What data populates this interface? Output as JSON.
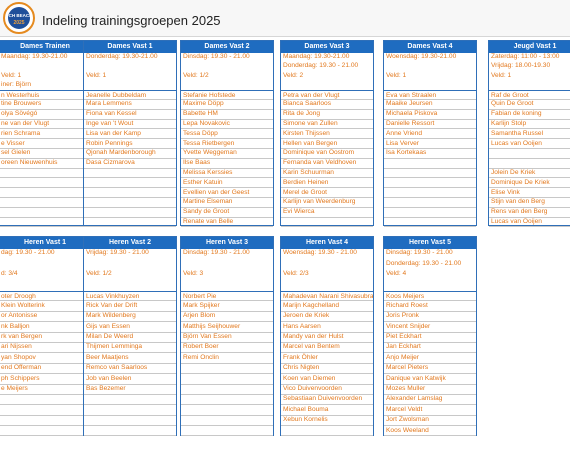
{
  "logo": {
    "line1": "VCH BEACH",
    "line2": "2025"
  },
  "title": "Indeling trainingsgroepen 2025",
  "sections": [
    {
      "groups": [
        {
          "name": "Dames Trainen",
          "schedule": [
            "Maandag: 19.30-21.00",
            null,
            "Veld: 1",
            "iner: Björn"
          ],
          "members": [
            "n Westerhuis",
            "tine Brouwers",
            "olya Sövégó",
            "ne van der Vlugt",
            "rien Schrama",
            "e Visser",
            "sel Gielen",
            "oreen Nieuwenhuis"
          ]
        },
        {
          "name": "Dames Vast 1",
          "schedule": [
            "Donderdag: 19.30-21.00",
            null,
            "Veld: 1"
          ],
          "members": [
            "Jeanelle Dubbeldam",
            "Mara Lemmens",
            "Fiona van Kessel",
            "Inge van 't Wout",
            "Lisa van der Kamp",
            "Robin Pennings",
            "Qjonah Mardenborough",
            "Dasa Cizmarova"
          ]
        },
        {
          "name": "Dames Vast 2",
          "schedule": [
            "Dinsdag: 19.30 - 21.00",
            null,
            "Veld: 1/2"
          ],
          "members": [
            "Stefanie Hofstede",
            "Maxime Döpp",
            "Babette HM",
            "Lepa Novakovic",
            "Tessa Döpp",
            "Tessa Rietbergen",
            "Yvette Weggeman",
            "Ilse Baas",
            "Melissa Kerssies",
            "Esther Katuin",
            "Evellien van der Geest",
            "Martine Elseman",
            "Sandy de Groot",
            "Renate van Belle"
          ]
        },
        {
          "name": "Dames Vast 3",
          "schedule": [
            "Maandag: 19.30-21.00",
            "Donderdag: 19.30 - 21.00",
            "Veld: 2"
          ],
          "members": [
            "Petra van der Vlugt",
            "Bianca Saarloos",
            "Rita de Jong",
            "Simone van Zullen",
            "Kirsten Thijssen",
            "Hellen van Bergen",
            "Dominique van Oostrom",
            "Fernanda van Veldhoven",
            "Karin Schuurman",
            "Berdien Heinen",
            "Merel de Groot",
            "Karlijn van Weerdenburg",
            "Evi Wierca"
          ]
        },
        {
          "name": "Dames Vast 4",
          "schedule": [
            "Woensdag: 19.30-21.00",
            null,
            "Veld: 1"
          ],
          "members": [
            "Eva van Straalen",
            "Maaike Jeursen",
            "Michaela Piskova",
            "Danielle Ressort",
            "Anne Vriend",
            "Lisa Verver",
            "Isa Kortekaas"
          ]
        },
        {
          "name": "Jeugd Vast 1",
          "schedule": [
            "Zaterdag: 11:00 - 13:00",
            "Vrijdag: 18.00-19.30",
            "Veld: 1"
          ],
          "members": [
            "Raf de Groot",
            "Quin De Groot",
            "Fabian de koning",
            "Karlijn Stolp",
            "Samantha Russel",
            "Lucas van Ooijen",
            null,
            null,
            "Jolein De Kriek",
            "Dominique De Kriek",
            "Elise Vink",
            "Stijn van den Berg",
            "Rens van den Berg",
            "Lucas van Ooijen"
          ]
        }
      ]
    },
    {
      "groups": [
        {
          "name": "Heren Vast 1",
          "schedule": [
            "dag: 19.30 - 21.00",
            null,
            "d: 3/4"
          ],
          "members": [
            "oter Droogh",
            "Klein Wolterink",
            "or Antonisse",
            "nk Balljon",
            "rk van Bergen",
            "ari Nijssen",
            "yan Shopov",
            "end Offerman",
            "ph Schippers",
            "e Meijers"
          ]
        },
        {
          "name": "Heren Vast 2",
          "schedule": [
            "Vrijdag: 19.30 - 21.00",
            null,
            "Veld: 1/2"
          ],
          "members": [
            "Lucas Vinkhuyzen",
            "Rick Van der Drift",
            "Mark Wildenberg",
            "Gijs van Essen",
            "Milan De Weerd",
            "Thijmen Lemminga",
            "Beer Maatjens",
            "Remco van Saarloos",
            "Job van Beelen",
            "Bas Bezemer"
          ]
        },
        {
          "name": "Heren Vast 3",
          "schedule": [
            "Dinsdag: 19.30 - 21.00",
            null,
            "Veld: 3"
          ],
          "members": [
            "Norbert Pie",
            "Mark Spijker",
            "Arjen Blom",
            "Matthijs Seijhouwer",
            "Björn Van Essen",
            "Robert Boer",
            "Remi Onclin"
          ]
        },
        {
          "name": "Heren Vast 4",
          "schedule": [
            "Woensdag: 19.30 - 21.00",
            null,
            "Veld: 2/3"
          ],
          "members": [
            "Mahadevan Narani Shivasubramaniam",
            "Marijn Kagchelland",
            "Jeroen de Kriek",
            "Hans Aarsen",
            "Mandy van der Hulst",
            "Marcel van Bentem",
            "Frank Öhler",
            "Chris Nigten",
            "Koen van Diemen",
            "Vico Duivenvoorden",
            "Sebastiaan Duivenvoorden",
            "Michael Bouma",
            "Xebun Kornelis"
          ]
        },
        {
          "name": "Heren Vast 5",
          "schedule": [
            "Dinsdag: 19.30 - 21.00",
            "Donderdag: 19.30 - 21.00",
            "Veld: 4"
          ],
          "members": [
            "Koos Meijers",
            "Richard Roest",
            "Joris Pronk",
            "Vincent Snijder",
            "Piet Eckhart",
            "Jan Eckhart",
            "Anjo Meijer",
            "Marcel Pieters",
            "Danique van Katwijk",
            "Mozes Muller",
            "Alexander Lamslag",
            "Marcel Veldt",
            "Jort Zwolsman",
            "Koos Weeland"
          ]
        }
      ]
    }
  ]
}
